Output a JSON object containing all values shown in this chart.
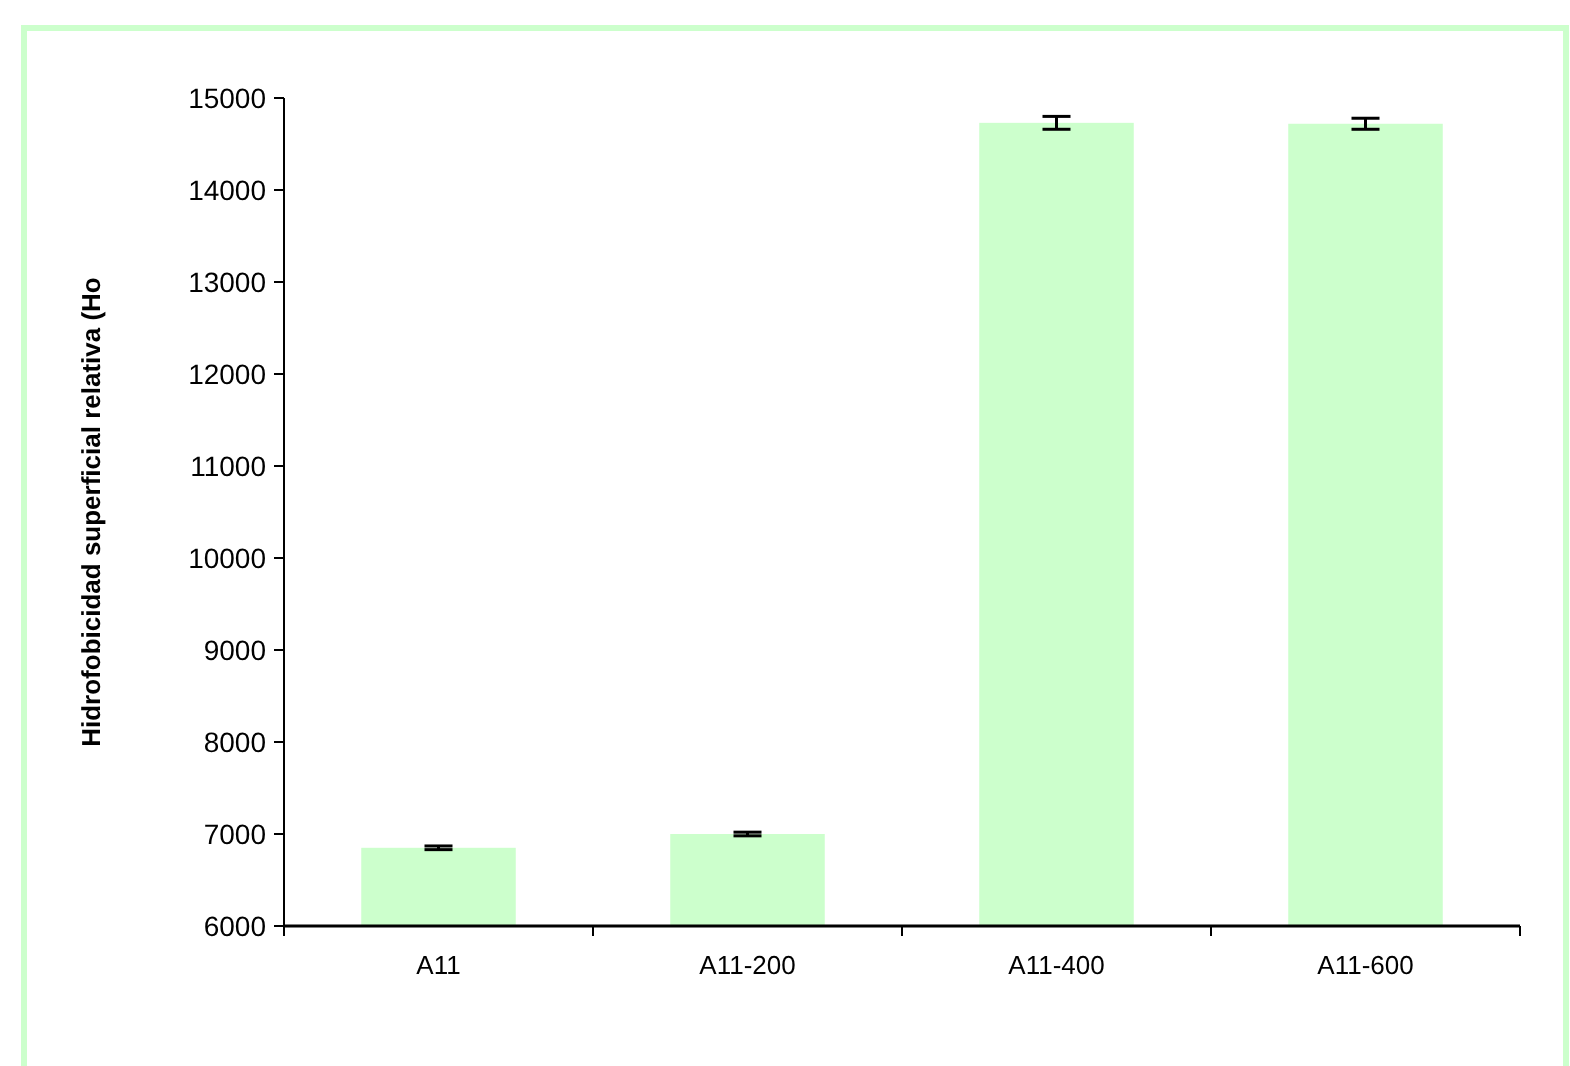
{
  "chart_data": {
    "type": "bar",
    "ylabel": "Hidrofobicidad superficial relativa (Ho",
    "categories": [
      "A11",
      "A11-200",
      "A11-400",
      "A11-600"
    ],
    "values": [
      6850,
      7000,
      14730,
      14720
    ],
    "errors": [
      20,
      20,
      70,
      60
    ],
    "color": "#ccffcc",
    "ylim": [
      6000,
      15000
    ],
    "yticks": [
      6000,
      7000,
      8000,
      9000,
      10000,
      11000,
      12000,
      13000,
      14000,
      15000
    ],
    "grid": false
  }
}
